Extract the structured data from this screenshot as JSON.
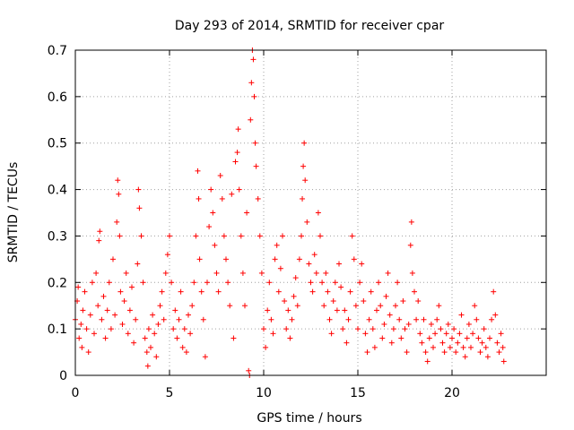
{
  "chart_data": {
    "type": "scatter",
    "title": "Day 293 of 2014, SRMTID for receiver cpar",
    "xlabel": "GPS time / hours",
    "ylabel": "SRMTID / TECUs",
    "xlim": [
      0,
      25
    ],
    "ylim": [
      0,
      0.7
    ],
    "xticks": [
      0,
      5,
      10,
      15,
      20
    ],
    "xtick_labels": [
      "0",
      "5",
      "10",
      "15",
      "20"
    ],
    "yticks": [
      0,
      0.1,
      0.2,
      0.3,
      0.4,
      0.5,
      0.6,
      0.7
    ],
    "ytick_labels": [
      "0",
      "0.1",
      "0.2",
      "0.3",
      "0.4",
      "0.5",
      "0.6",
      "0.7"
    ],
    "grid": true,
    "marker": "+",
    "color": "#ff0000",
    "series": [
      {
        "name": "SRMTID",
        "points": [
          [
            0.0,
            0.12
          ],
          [
            0.1,
            0.16
          ],
          [
            0.15,
            0.19
          ],
          [
            0.2,
            0.08
          ],
          [
            0.3,
            0.11
          ],
          [
            0.35,
            0.06
          ],
          [
            0.4,
            0.14
          ],
          [
            0.5,
            0.18
          ],
          [
            0.6,
            0.1
          ],
          [
            0.7,
            0.05
          ],
          [
            0.8,
            0.13
          ],
          [
            0.9,
            0.2
          ],
          [
            1.0,
            0.09
          ],
          [
            1.1,
            0.22
          ],
          [
            1.2,
            0.15
          ],
          [
            1.25,
            0.29
          ],
          [
            1.3,
            0.31
          ],
          [
            1.4,
            0.12
          ],
          [
            1.5,
            0.17
          ],
          [
            1.6,
            0.08
          ],
          [
            1.7,
            0.14
          ],
          [
            1.8,
            0.2
          ],
          [
            1.9,
            0.1
          ],
          [
            2.0,
            0.25
          ],
          [
            2.1,
            0.13
          ],
          [
            2.2,
            0.33
          ],
          [
            2.25,
            0.42
          ],
          [
            2.3,
            0.39
          ],
          [
            2.35,
            0.3
          ],
          [
            2.4,
            0.18
          ],
          [
            2.5,
            0.11
          ],
          [
            2.6,
            0.16
          ],
          [
            2.7,
            0.22
          ],
          [
            2.8,
            0.09
          ],
          [
            2.9,
            0.14
          ],
          [
            3.0,
            0.19
          ],
          [
            3.1,
            0.07
          ],
          [
            3.2,
            0.12
          ],
          [
            3.3,
            0.24
          ],
          [
            3.35,
            0.4
          ],
          [
            3.4,
            0.36
          ],
          [
            3.5,
            0.3
          ],
          [
            3.6,
            0.2
          ],
          [
            3.7,
            0.08
          ],
          [
            3.8,
            0.05
          ],
          [
            3.85,
            0.02
          ],
          [
            3.9,
            0.1
          ],
          [
            4.0,
            0.06
          ],
          [
            4.1,
            0.13
          ],
          [
            4.2,
            0.09
          ],
          [
            4.3,
            0.04
          ],
          [
            4.4,
            0.11
          ],
          [
            4.5,
            0.15
          ],
          [
            4.6,
            0.18
          ],
          [
            4.7,
            0.12
          ],
          [
            4.8,
            0.22
          ],
          [
            4.9,
            0.26
          ],
          [
            5.0,
            0.3
          ],
          [
            5.1,
            0.2
          ],
          [
            5.2,
            0.1
          ],
          [
            5.3,
            0.14
          ],
          [
            5.4,
            0.08
          ],
          [
            5.5,
            0.12
          ],
          [
            5.6,
            0.18
          ],
          [
            5.7,
            0.06
          ],
          [
            5.8,
            0.1
          ],
          [
            5.9,
            0.05
          ],
          [
            6.0,
            0.13
          ],
          [
            6.1,
            0.09
          ],
          [
            6.2,
            0.15
          ],
          [
            6.3,
            0.2
          ],
          [
            6.4,
            0.3
          ],
          [
            6.5,
            0.44
          ],
          [
            6.55,
            0.38
          ],
          [
            6.6,
            0.25
          ],
          [
            6.7,
            0.18
          ],
          [
            6.8,
            0.12
          ],
          [
            6.9,
            0.04
          ],
          [
            7.0,
            0.2
          ],
          [
            7.1,
            0.32
          ],
          [
            7.2,
            0.4
          ],
          [
            7.3,
            0.35
          ],
          [
            7.4,
            0.28
          ],
          [
            7.5,
            0.22
          ],
          [
            7.6,
            0.18
          ],
          [
            7.7,
            0.43
          ],
          [
            7.8,
            0.38
          ],
          [
            7.9,
            0.3
          ],
          [
            8.0,
            0.25
          ],
          [
            8.1,
            0.2
          ],
          [
            8.2,
            0.15
          ],
          [
            8.3,
            0.39
          ],
          [
            8.4,
            0.08
          ],
          [
            8.5,
            0.46
          ],
          [
            8.6,
            0.48
          ],
          [
            8.65,
            0.53
          ],
          [
            8.7,
            0.4
          ],
          [
            8.8,
            0.3
          ],
          [
            8.9,
            0.22
          ],
          [
            9.0,
            0.15
          ],
          [
            9.1,
            0.35
          ],
          [
            9.2,
            0.01
          ],
          [
            9.25,
            0.0
          ],
          [
            9.3,
            0.55
          ],
          [
            9.35,
            0.63
          ],
          [
            9.4,
            0.7
          ],
          [
            9.45,
            0.68
          ],
          [
            9.5,
            0.6
          ],
          [
            9.55,
            0.5
          ],
          [
            9.6,
            0.45
          ],
          [
            9.7,
            0.38
          ],
          [
            9.8,
            0.3
          ],
          [
            9.9,
            0.22
          ],
          [
            10.0,
            0.1
          ],
          [
            10.1,
            0.06
          ],
          [
            10.2,
            0.14
          ],
          [
            10.3,
            0.2
          ],
          [
            10.4,
            0.12
          ],
          [
            10.5,
            0.09
          ],
          [
            10.6,
            0.25
          ],
          [
            10.7,
            0.28
          ],
          [
            10.8,
            0.18
          ],
          [
            10.9,
            0.23
          ],
          [
            11.0,
            0.3
          ],
          [
            11.1,
            0.16
          ],
          [
            11.2,
            0.1
          ],
          [
            11.3,
            0.14
          ],
          [
            11.4,
            0.08
          ],
          [
            11.5,
            0.12
          ],
          [
            11.6,
            0.17
          ],
          [
            11.7,
            0.21
          ],
          [
            11.8,
            0.15
          ],
          [
            11.9,
            0.25
          ],
          [
            12.0,
            0.3
          ],
          [
            12.05,
            0.38
          ],
          [
            12.1,
            0.45
          ],
          [
            12.15,
            0.5
          ],
          [
            12.2,
            0.42
          ],
          [
            12.3,
            0.33
          ],
          [
            12.4,
            0.24
          ],
          [
            12.5,
            0.2
          ],
          [
            12.6,
            0.18
          ],
          [
            12.7,
            0.26
          ],
          [
            12.8,
            0.22
          ],
          [
            12.9,
            0.35
          ],
          [
            13.0,
            0.3
          ],
          [
            13.1,
            0.2
          ],
          [
            13.2,
            0.15
          ],
          [
            13.3,
            0.22
          ],
          [
            13.4,
            0.18
          ],
          [
            13.5,
            0.12
          ],
          [
            13.6,
            0.09
          ],
          [
            13.7,
            0.16
          ],
          [
            13.8,
            0.2
          ],
          [
            13.9,
            0.14
          ],
          [
            14.0,
            0.24
          ],
          [
            14.1,
            0.19
          ],
          [
            14.2,
            0.1
          ],
          [
            14.3,
            0.14
          ],
          [
            14.4,
            0.07
          ],
          [
            14.5,
            0.12
          ],
          [
            14.6,
            0.18
          ],
          [
            14.7,
            0.3
          ],
          [
            14.8,
            0.25
          ],
          [
            14.9,
            0.15
          ],
          [
            15.0,
            0.1
          ],
          [
            15.1,
            0.2
          ],
          [
            15.2,
            0.24
          ],
          [
            15.3,
            0.16
          ],
          [
            15.4,
            0.09
          ],
          [
            15.5,
            0.05
          ],
          [
            15.6,
            0.12
          ],
          [
            15.7,
            0.18
          ],
          [
            15.8,
            0.1
          ],
          [
            15.9,
            0.06
          ],
          [
            16.0,
            0.14
          ],
          [
            16.1,
            0.2
          ],
          [
            16.2,
            0.15
          ],
          [
            16.3,
            0.08
          ],
          [
            16.4,
            0.11
          ],
          [
            16.5,
            0.17
          ],
          [
            16.6,
            0.22
          ],
          [
            16.7,
            0.13
          ],
          [
            16.8,
            0.07
          ],
          [
            16.9,
            0.1
          ],
          [
            17.0,
            0.15
          ],
          [
            17.1,
            0.2
          ],
          [
            17.2,
            0.12
          ],
          [
            17.3,
            0.08
          ],
          [
            17.4,
            0.16
          ],
          [
            17.5,
            0.1
          ],
          [
            17.6,
            0.05
          ],
          [
            17.7,
            0.11
          ],
          [
            17.8,
            0.28
          ],
          [
            17.85,
            0.33
          ],
          [
            17.9,
            0.22
          ],
          [
            18.0,
            0.18
          ],
          [
            18.1,
            0.12
          ],
          [
            18.2,
            0.16
          ],
          [
            18.3,
            0.09
          ],
          [
            18.4,
            0.07
          ],
          [
            18.5,
            0.12
          ],
          [
            18.6,
            0.05
          ],
          [
            18.7,
            0.03
          ],
          [
            18.8,
            0.08
          ],
          [
            18.9,
            0.11
          ],
          [
            19.0,
            0.06
          ],
          [
            19.1,
            0.09
          ],
          [
            19.2,
            0.12
          ],
          [
            19.3,
            0.15
          ],
          [
            19.4,
            0.1
          ],
          [
            19.5,
            0.07
          ],
          [
            19.6,
            0.05
          ],
          [
            19.7,
            0.09
          ],
          [
            19.8,
            0.11
          ],
          [
            19.9,
            0.06
          ],
          [
            20.0,
            0.08
          ],
          [
            20.1,
            0.1
          ],
          [
            20.2,
            0.05
          ],
          [
            20.3,
            0.07
          ],
          [
            20.4,
            0.09
          ],
          [
            20.5,
            0.13
          ],
          [
            20.6,
            0.06
          ],
          [
            20.7,
            0.04
          ],
          [
            20.8,
            0.08
          ],
          [
            20.9,
            0.11
          ],
          [
            21.0,
            0.06
          ],
          [
            21.1,
            0.09
          ],
          [
            21.2,
            0.15
          ],
          [
            21.3,
            0.12
          ],
          [
            21.4,
            0.08
          ],
          [
            21.5,
            0.05
          ],
          [
            21.6,
            0.07
          ],
          [
            21.7,
            0.1
          ],
          [
            21.8,
            0.06
          ],
          [
            21.9,
            0.04
          ],
          [
            22.0,
            0.08
          ],
          [
            22.1,
            0.12
          ],
          [
            22.2,
            0.18
          ],
          [
            22.3,
            0.13
          ],
          [
            22.4,
            0.07
          ],
          [
            22.5,
            0.05
          ],
          [
            22.6,
            0.09
          ],
          [
            22.7,
            0.06
          ],
          [
            22.75,
            0.03
          ]
        ]
      }
    ]
  }
}
